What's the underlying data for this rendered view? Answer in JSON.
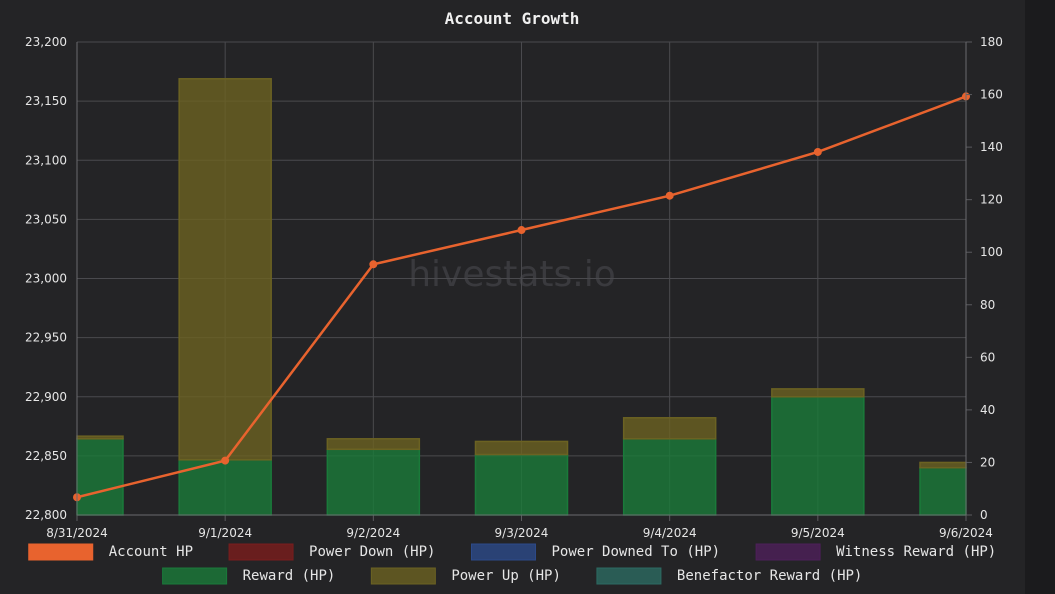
{
  "chart_data": {
    "type": "bar+line",
    "title": "Account Growth",
    "watermark": "hivestats.io",
    "categories": [
      "8/31/2024",
      "9/1/2024",
      "9/2/2024",
      "9/3/2024",
      "9/4/2024",
      "9/5/2024",
      "9/6/2024"
    ],
    "y_left": {
      "min": 22800,
      "max": 23200,
      "step": 50
    },
    "y_right": {
      "min": 0,
      "max": 180,
      "step": 20
    },
    "grid": true,
    "legend_position": "bottom",
    "series": [
      {
        "name": "Account HP",
        "type": "line",
        "axis": "left",
        "color": "#e8632e",
        "values": [
          22815,
          22846,
          23012,
          23041,
          23070,
          23107,
          23154
        ]
      },
      {
        "name": "Power Down (HP)",
        "type": "bar",
        "axis": "right",
        "color": "#7a1d1d",
        "values": [
          0,
          0,
          0,
          0,
          0,
          0,
          0
        ]
      },
      {
        "name": "Power Downed To (HP)",
        "type": "bar",
        "axis": "right",
        "color": "#2c4a8a",
        "values": [
          0,
          0,
          0,
          0,
          0,
          0,
          0
        ]
      },
      {
        "name": "Witness Reward (HP)",
        "type": "bar",
        "axis": "right",
        "color": "#4d1f5a",
        "values": [
          0,
          0,
          0,
          0,
          0,
          0,
          0
        ]
      },
      {
        "name": "Reward (HP)",
        "type": "bar",
        "axis": "right",
        "color": "#1a7a3a",
        "values": [
          29,
          21,
          25,
          23,
          29,
          45,
          18
        ]
      },
      {
        "name": "Power Up (HP)",
        "type": "bar",
        "axis": "right",
        "color": "#6b6222",
        "values": [
          1,
          145,
          4,
          5,
          8,
          3,
          2
        ]
      },
      {
        "name": "Benefactor Reward (HP)",
        "type": "bar",
        "axis": "right",
        "color": "#2c6a62",
        "values": [
          0,
          0,
          0,
          0,
          0,
          0,
          0
        ]
      }
    ]
  }
}
